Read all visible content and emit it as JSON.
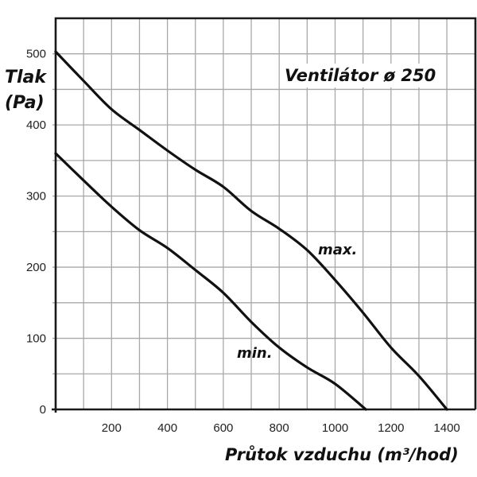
{
  "chart_data": {
    "type": "line",
    "title": "Ventilátor ø 250",
    "xlabel": "Průtok vzduchu (m³/hod)",
    "ylabel": "Tlak (Pa)",
    "xlim": [
      0,
      1500
    ],
    "ylim": [
      0,
      555
    ],
    "x_ticks": [
      "200",
      "400",
      "600",
      "800",
      "1000",
      "1200",
      "1400"
    ],
    "y_ticks": [
      "0",
      "100",
      "200",
      "300",
      "400",
      "500"
    ],
    "grid": true,
    "grid_x_step": 100,
    "grid_y_step": 50,
    "series": [
      {
        "name": "max.",
        "x": [
          0,
          100,
          200,
          300,
          400,
          500,
          600,
          700,
          800,
          900,
          1000,
          1100,
          1200,
          1300,
          1400
        ],
        "y": [
          503,
          462,
          422,
          393,
          364,
          337,
          313,
          279,
          254,
          224,
          182,
          136,
          87,
          47,
          0
        ]
      },
      {
        "name": "min.",
        "x": [
          0,
          100,
          200,
          300,
          400,
          500,
          600,
          700,
          800,
          900,
          1000,
          1110
        ],
        "y": [
          360,
          322,
          285,
          252,
          227,
          196,
          164,
          123,
          87,
          59,
          36,
          0
        ]
      }
    ],
    "annotations": [
      {
        "text": "max.",
        "x": 970,
        "y": 225
      },
      {
        "text": "min.",
        "x": 690,
        "y": 78
      }
    ]
  },
  "labels": {
    "title": "Ventilátor ø 250",
    "ylabel_line1": "Tlak",
    "ylabel_line2": "(Pa)",
    "xlabel": "Průtok vzduchu (m³/hod)",
    "series_max": "max.",
    "series_min": "min."
  },
  "colors": {
    "line": "#111111",
    "grid": "#a8a8a8",
    "frame": "#1a1a1a"
  }
}
